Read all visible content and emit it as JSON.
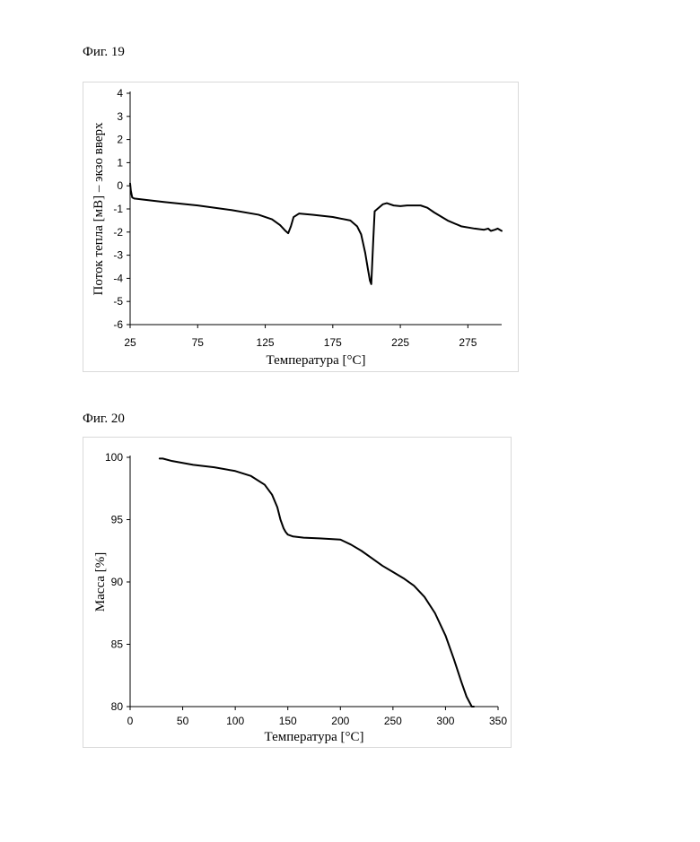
{
  "figures": [
    {
      "label": "Фиг. 19"
    },
    {
      "label": "Фиг. 20"
    }
  ],
  "chart_data": [
    {
      "type": "line",
      "title": "",
      "xlabel": "Температура [°C]",
      "ylabel": "Поток тепла [мВ] – экзо вверх",
      "xlim": [
        25,
        300
      ],
      "ylim": [
        -6,
        4
      ],
      "xticks": [
        25,
        75,
        125,
        175,
        225,
        275
      ],
      "yticks": [
        4,
        3,
        2,
        1,
        0,
        -1,
        -2,
        -3,
        -4,
        -5,
        -6
      ],
      "grid": false,
      "series": [
        {
          "x": [
            25,
            25.5,
            26.5,
            28,
            35,
            50,
            75,
            100,
            120,
            130,
            136,
            140,
            142,
            144,
            146,
            150,
            160,
            175,
            188,
            193,
            196,
            199,
            201,
            202.5,
            203.5,
            205,
            206,
            208,
            212,
            215,
            220,
            225,
            230,
            240,
            245,
            250,
            260,
            270,
            280,
            287,
            290,
            292,
            295,
            297,
            300
          ],
          "y": [
            0.1,
            -0.2,
            -0.5,
            -0.55,
            -0.6,
            -0.7,
            -0.85,
            -1.05,
            -1.25,
            -1.45,
            -1.7,
            -1.95,
            -2.05,
            -1.75,
            -1.35,
            -1.2,
            -1.25,
            -1.35,
            -1.5,
            -1.75,
            -2.1,
            -2.9,
            -3.6,
            -4.1,
            -4.25,
            -2.3,
            -1.1,
            -1.0,
            -0.8,
            -0.75,
            -0.85,
            -0.88,
            -0.85,
            -0.85,
            -0.95,
            -1.15,
            -1.5,
            -1.75,
            -1.85,
            -1.9,
            -1.85,
            -1.95,
            -1.9,
            -1.85,
            -1.95
          ]
        }
      ]
    },
    {
      "type": "line",
      "title": "",
      "xlabel": "Температура [°C]",
      "ylabel": "Масса [%]",
      "xlim": [
        0,
        350
      ],
      "ylim": [
        80,
        100
      ],
      "xticks": [
        0,
        50,
        100,
        150,
        200,
        250,
        300,
        350
      ],
      "yticks": [
        100,
        95,
        90,
        85,
        80
      ],
      "grid": false,
      "series": [
        {
          "x": [
            28,
            31,
            40,
            60,
            80,
            100,
            115,
            128,
            135,
            140,
            143,
            146,
            148,
            150,
            155,
            165,
            180,
            200,
            210,
            220,
            230,
            240,
            250,
            260,
            270,
            280,
            290,
            300,
            308,
            315,
            320,
            325,
            327
          ],
          "y": [
            99.9,
            99.9,
            99.7,
            99.4,
            99.2,
            98.9,
            98.5,
            97.8,
            97.0,
            96.0,
            95.0,
            94.3,
            94.0,
            93.8,
            93.65,
            93.55,
            93.5,
            93.4,
            93.0,
            92.5,
            91.9,
            91.3,
            90.8,
            90.3,
            89.7,
            88.8,
            87.5,
            85.7,
            83.8,
            82.0,
            80.8,
            80.0,
            80.0
          ]
        }
      ]
    }
  ]
}
